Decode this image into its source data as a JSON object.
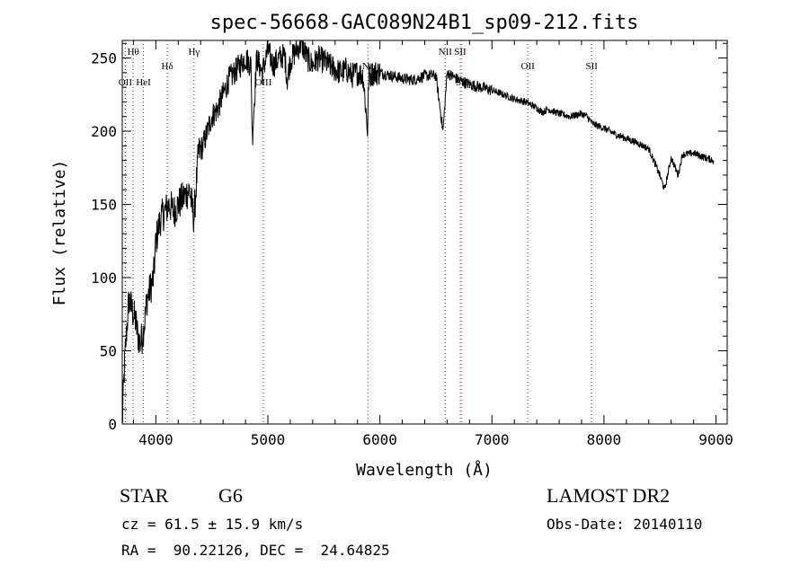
{
  "chart_data": {
    "type": "line",
    "title": "spec-56668-GAC089N24B1_sp09-212.fits",
    "xlabel": "Wavelength (Å)",
    "ylabel": "Flux (relative)",
    "xlim": [
      3700,
      9100
    ],
    "ylim": [
      0,
      262
    ],
    "xticks": [
      4000,
      5000,
      6000,
      7000,
      8000,
      9000
    ],
    "yticks": [
      0,
      50,
      100,
      150,
      200,
      250
    ],
    "grid": false,
    "line_color": "#000000",
    "marker_color": "#b22222",
    "series": [
      {
        "x": [
          3700,
          3720,
          3740,
          3760,
          3780,
          3800,
          3820,
          3840,
          3860,
          3880,
          3900,
          3920,
          3940,
          3960,
          3980,
          4000,
          4040,
          4080,
          4120,
          4160,
          4200,
          4250,
          4300,
          4340,
          4380,
          4420,
          4460,
          4500,
          4550,
          4600,
          4650,
          4700,
          4750,
          4800,
          4850,
          4861,
          4900,
          4950,
          5000,
          5050,
          5100,
          5150,
          5172,
          5200,
          5250,
          5300,
          5350,
          5400,
          5450,
          5500,
          5550,
          5600,
          5650,
          5700,
          5750,
          5800,
          5850,
          5890,
          5900,
          5950,
          6000,
          6100,
          6200,
          6300,
          6400,
          6500,
          6563,
          6600,
          6700,
          6800,
          6900,
          7000,
          7100,
          7200,
          7300,
          7400,
          7450,
          7500,
          7600,
          7700,
          7800,
          7850,
          7900,
          8000,
          8100,
          8200,
          8300,
          8400,
          8498,
          8542,
          8600,
          8662,
          8700,
          8800,
          8900,
          8980
        ],
        "y": [
          0,
          40,
          65,
          85,
          80,
          75,
          70,
          60,
          55,
          60,
          70,
          85,
          90,
          95,
          100,
          125,
          140,
          145,
          150,
          145,
          150,
          155,
          160,
          140,
          185,
          190,
          200,
          210,
          215,
          225,
          235,
          240,
          245,
          250,
          245,
          195,
          250,
          240,
          255,
          245,
          250,
          252,
          235,
          248,
          255,
          260,
          250,
          245,
          250,
          248,
          245,
          242,
          240,
          242,
          238,
          240,
          238,
          200,
          238,
          240,
          240,
          238,
          236,
          235,
          238,
          238,
          200,
          240,
          235,
          232,
          230,
          228,
          225,
          222,
          220,
          216,
          213,
          215,
          212,
          210,
          212,
          210,
          205,
          202,
          198,
          195,
          192,
          188,
          170,
          160,
          182,
          170,
          184,
          185,
          182,
          180
        ]
      }
    ],
    "line_markers": [
      {
        "label": "Hθ",
        "x": 3798,
        "row": 1
      },
      {
        "label": "OII",
        "x": 3727,
        "row": 3
      },
      {
        "label": "HeI",
        "x": 3889,
        "row": 3
      },
      {
        "label": "Hδ",
        "x": 4102,
        "row": 2
      },
      {
        "label": "Hγ",
        "x": 4341,
        "row": 1
      },
      {
        "label": "OIII",
        "x": 4959,
        "row": 3
      },
      {
        "label": "Na",
        "x": 5893,
        "row": 2
      },
      {
        "label": "NII",
        "x": 6583,
        "row": 1
      },
      {
        "label": "SII",
        "x": 6717,
        "row": 1
      },
      {
        "label": "SII",
        "x": 6731,
        "row": 3
      },
      {
        "label": "OII",
        "x": 7320,
        "row": 2
      },
      {
        "label": "SII",
        "x": 7890,
        "row": 2
      }
    ]
  },
  "info": {
    "class": "STAR",
    "subclass": "G6",
    "survey": "LAMOST DR2",
    "cz": "cz = 61.5 ± 15.9 km/s",
    "obs_date": "Obs-Date: 20140110",
    "coords": "RA =  90.22126, DEC =  24.64825"
  }
}
